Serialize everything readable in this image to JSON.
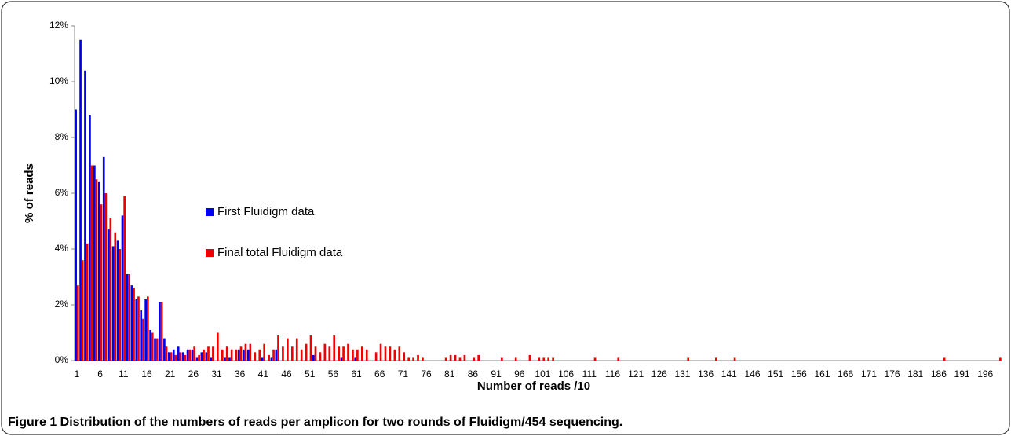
{
  "chart_data": {
    "type": "bar",
    "ylabel": "% of reads",
    "xlabel": "Number of reads /10",
    "caption": "Figure 1 Distribution of the numbers of reads per amplicon for two rounds of Fluidigm/454 sequencing.",
    "legend": "inside-left",
    "ylim": [
      0,
      12
    ],
    "yticks": [
      {
        "value": 0,
        "label": "0%"
      },
      {
        "value": 2,
        "label": "2%"
      },
      {
        "value": 4,
        "label": "4%"
      },
      {
        "value": 6,
        "label": "6%"
      },
      {
        "value": 8,
        "label": "8%"
      },
      {
        "value": 10,
        "label": "10%"
      },
      {
        "value": 12,
        "label": "12%"
      }
    ],
    "categories": [
      "1",
      null,
      null,
      null,
      null,
      "6",
      null,
      null,
      null,
      null,
      "11",
      null,
      null,
      null,
      null,
      "16",
      null,
      null,
      null,
      null,
      "21",
      null,
      null,
      null,
      null,
      "26",
      null,
      null,
      null,
      null,
      "31",
      null,
      null,
      null,
      null,
      "36",
      null,
      null,
      null,
      null,
      "41",
      null,
      null,
      null,
      null,
      "46",
      null,
      null,
      null,
      null,
      "51",
      null,
      null,
      null,
      null,
      "56",
      null,
      null,
      null,
      null,
      "61",
      null,
      null,
      null,
      null,
      "66",
      null,
      null,
      null,
      null,
      "71",
      null,
      null,
      null,
      null,
      "76",
      null,
      null,
      null,
      null,
      "81",
      null,
      null,
      null,
      null,
      "86",
      null,
      null,
      null,
      null,
      "91",
      null,
      null,
      null,
      null,
      "96",
      null,
      null,
      null,
      null,
      "101",
      null,
      null,
      null,
      null,
      "106",
      null,
      null,
      null,
      null,
      "111",
      null,
      null,
      null,
      null,
      "116",
      null,
      null,
      null,
      null,
      "121",
      null,
      null,
      null,
      null,
      "126",
      null,
      null,
      null,
      null,
      "131",
      null,
      null,
      null,
      null,
      "136",
      null,
      null,
      null,
      null,
      "141",
      null,
      null,
      null,
      null,
      "146",
      null,
      null,
      null,
      null,
      "151",
      null,
      null,
      null,
      null,
      "156",
      null,
      null,
      null,
      null,
      "161",
      null,
      null,
      null,
      null,
      "166",
      null,
      null,
      null,
      null,
      "171",
      null,
      null,
      null,
      null,
      "176",
      null,
      null,
      null,
      null,
      "181",
      null,
      null,
      null,
      null,
      "186",
      null,
      null,
      null,
      null,
      "191",
      null,
      null,
      null,
      null,
      "196",
      null,
      null,
      null
    ],
    "series": [
      {
        "name": "First Fluidigm data",
        "color": "#0000ee",
        "values": [
          9.0,
          11.5,
          10.4,
          8.8,
          7.0,
          6.4,
          7.3,
          4.7,
          4.1,
          4.3,
          5.2,
          3.1,
          2.7,
          2.2,
          1.8,
          2.2,
          1.1,
          0.8,
          2.1,
          0.8,
          0.3,
          0.4,
          0.5,
          0.3,
          0.4,
          0.4,
          0.1,
          0.3,
          0.3,
          0.1,
          0,
          0,
          0.1,
          0.1,
          0,
          0.4,
          0.4,
          0.4,
          0,
          0,
          0.1,
          0,
          0.1,
          0.4,
          0,
          0,
          0,
          0,
          0,
          0,
          0,
          0.2,
          0,
          0,
          0,
          0,
          0,
          0.1,
          0,
          0,
          0.1,
          0,
          0,
          0,
          0,
          0,
          0,
          0,
          0,
          0,
          0,
          0,
          0,
          0,
          0,
          0,
          0,
          0,
          0,
          0,
          0,
          0,
          0,
          0,
          0,
          0,
          0,
          0,
          0,
          0,
          0,
          0,
          0,
          0,
          0,
          0,
          0,
          0,
          0,
          0,
          0,
          0,
          0,
          0,
          0,
          0,
          0,
          0,
          0,
          0,
          0,
          0,
          0,
          0,
          0,
          0,
          0,
          0,
          0,
          0,
          0,
          0,
          0,
          0,
          0,
          0,
          0,
          0,
          0,
          0,
          0,
          0,
          0,
          0,
          0,
          0,
          0,
          0,
          0,
          0,
          0,
          0,
          0,
          0,
          0,
          0,
          0,
          0,
          0,
          0,
          0,
          0,
          0,
          0,
          0,
          0,
          0,
          0,
          0,
          0,
          0,
          0,
          0,
          0,
          0,
          0,
          0,
          0,
          0,
          0,
          0,
          0,
          0,
          0,
          0,
          0,
          0,
          0,
          0,
          0,
          0,
          0,
          0,
          0,
          0,
          0,
          0,
          0,
          0,
          0,
          0,
          0,
          0,
          0,
          0,
          0,
          0,
          0,
          0
        ]
      },
      {
        "name": "Final total Fluidigm data",
        "color": "#ee0000",
        "values": [
          2.7,
          3.6,
          4.2,
          7.0,
          6.5,
          5.6,
          6.0,
          5.1,
          4.6,
          4.0,
          5.9,
          3.1,
          2.6,
          2.3,
          1.5,
          2.3,
          1.0,
          0.8,
          2.1,
          0.5,
          0.3,
          0.2,
          0.3,
          0.2,
          0.4,
          0.5,
          0.2,
          0.4,
          0.5,
          0.5,
          1.0,
          0.4,
          0.5,
          0.4,
          0.4,
          0.5,
          0.6,
          0.6,
          0.3,
          0.4,
          0.6,
          0.2,
          0.4,
          0.9,
          0.5,
          0.8,
          0.5,
          0.8,
          0.4,
          0.6,
          0.9,
          0.5,
          0.3,
          0.6,
          0.5,
          0.9,
          0.5,
          0.5,
          0.6,
          0.4,
          0.4,
          0.5,
          0.4,
          0,
          0.3,
          0.6,
          0.5,
          0.5,
          0.4,
          0.5,
          0.3,
          0.1,
          0.1,
          0.2,
          0.1,
          0,
          0,
          0,
          0,
          0.1,
          0.2,
          0.2,
          0.1,
          0.2,
          0,
          0.1,
          0.2,
          0,
          0,
          0,
          0,
          0.1,
          0,
          0,
          0.1,
          0,
          0,
          0.2,
          0,
          0.1,
          0.1,
          0.1,
          0.1,
          0,
          0,
          0,
          0,
          0,
          0,
          0,
          0,
          0.1,
          0,
          0,
          0,
          0,
          0.1,
          0,
          0,
          0,
          0,
          0,
          0,
          0,
          0,
          0,
          0,
          0,
          0,
          0,
          0,
          0.1,
          0,
          0,
          0,
          0,
          0,
          0.1,
          0,
          0,
          0,
          0.1,
          0,
          0,
          0,
          0,
          0,
          0,
          0,
          0,
          0,
          0,
          0,
          0,
          0,
          0,
          0,
          0,
          0,
          0,
          0,
          0,
          0,
          0,
          0,
          0,
          0,
          0,
          0,
          0,
          0,
          0,
          0,
          0,
          0,
          0,
          0,
          0,
          0,
          0,
          0,
          0,
          0,
          0,
          0,
          0,
          0.1,
          0,
          0,
          0,
          0,
          0,
          0,
          0,
          0,
          0,
          0,
          0,
          0.1
        ]
      }
    ]
  }
}
